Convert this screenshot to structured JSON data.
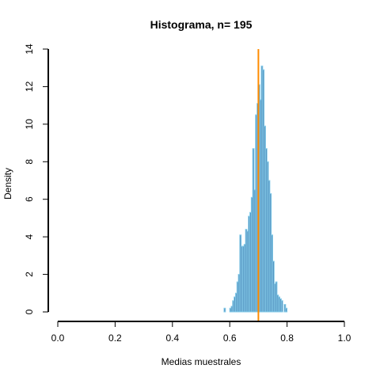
{
  "chart_data": {
    "type": "bar",
    "title": "Histograma, n= 195",
    "xlabel": "Medias muestrales",
    "ylabel": "Density",
    "xlim": [
      0.0,
      1.0
    ],
    "ylim": [
      0,
      14
    ],
    "x_ticks": [
      "0.0",
      "0.2",
      "0.4",
      "0.6",
      "0.8",
      "1.0"
    ],
    "y_ticks": [
      "0",
      "2",
      "4",
      "6",
      "8",
      "10",
      "12",
      "14"
    ],
    "grid": false,
    "legend": "none",
    "bin_width": 0.005,
    "bins": [
      {
        "x0": 0.58,
        "x1": 0.585,
        "density": 0.2
      },
      {
        "x0": 0.6,
        "x1": 0.605,
        "density": 0.2
      },
      {
        "x0": 0.605,
        "x1": 0.61,
        "density": 0.3
      },
      {
        "x0": 0.61,
        "x1": 0.615,
        "density": 0.6
      },
      {
        "x0": 0.615,
        "x1": 0.62,
        "density": 0.8
      },
      {
        "x0": 0.62,
        "x1": 0.625,
        "density": 1.0
      },
      {
        "x0": 0.625,
        "x1": 0.63,
        "density": 1.6
      },
      {
        "x0": 0.63,
        "x1": 0.635,
        "density": 2.0
      },
      {
        "x0": 0.635,
        "x1": 0.64,
        "density": 4.1
      },
      {
        "x0": 0.64,
        "x1": 0.645,
        "density": 3.5
      },
      {
        "x0": 0.645,
        "x1": 0.65,
        "density": 3.5
      },
      {
        "x0": 0.65,
        "x1": 0.655,
        "density": 3.6
      },
      {
        "x0": 0.655,
        "x1": 0.66,
        "density": 4.4
      },
      {
        "x0": 0.66,
        "x1": 0.665,
        "density": 4.3
      },
      {
        "x0": 0.665,
        "x1": 0.67,
        "density": 5.1
      },
      {
        "x0": 0.67,
        "x1": 0.675,
        "density": 5.3
      },
      {
        "x0": 0.675,
        "x1": 0.68,
        "density": 6.1
      },
      {
        "x0": 0.68,
        "x1": 0.685,
        "density": 8.7
      },
      {
        "x0": 0.685,
        "x1": 0.69,
        "density": 6.5
      },
      {
        "x0": 0.69,
        "x1": 0.695,
        "density": 10.5
      },
      {
        "x0": 0.695,
        "x1": 0.7,
        "density": 11.1
      },
      {
        "x0": 0.7,
        "x1": 0.705,
        "density": 12.1
      },
      {
        "x0": 0.705,
        "x1": 0.71,
        "density": 11.3
      },
      {
        "x0": 0.71,
        "x1": 0.715,
        "density": 13.1
      },
      {
        "x0": 0.715,
        "x1": 0.72,
        "density": 12.9
      },
      {
        "x0": 0.72,
        "x1": 0.725,
        "density": 9.9
      },
      {
        "x0": 0.725,
        "x1": 0.73,
        "density": 8.7
      },
      {
        "x0": 0.73,
        "x1": 0.735,
        "density": 8.0
      },
      {
        "x0": 0.735,
        "x1": 0.74,
        "density": 7.0
      },
      {
        "x0": 0.74,
        "x1": 0.745,
        "density": 6.3
      },
      {
        "x0": 0.745,
        "x1": 0.75,
        "density": 4.1
      },
      {
        "x0": 0.75,
        "x1": 0.755,
        "density": 2.7
      },
      {
        "x0": 0.755,
        "x1": 0.76,
        "density": 1.5
      },
      {
        "x0": 0.76,
        "x1": 0.765,
        "density": 1.6
      },
      {
        "x0": 0.765,
        "x1": 0.77,
        "density": 0.9
      },
      {
        "x0": 0.77,
        "x1": 0.775,
        "density": 0.8
      },
      {
        "x0": 0.775,
        "x1": 0.78,
        "density": 0.7
      },
      {
        "x0": 0.78,
        "x1": 0.785,
        "density": 0.6
      },
      {
        "x0": 0.79,
        "x1": 0.795,
        "density": 0.4
      },
      {
        "x0": 0.795,
        "x1": 0.8,
        "density": 0.2
      }
    ],
    "reference_line": {
      "x": 0.7,
      "color": "#ff8c00"
    },
    "colors": {
      "bar_fill": "#4682b4",
      "bar_border": "#87ceeb",
      "axis": "#000000"
    }
  }
}
